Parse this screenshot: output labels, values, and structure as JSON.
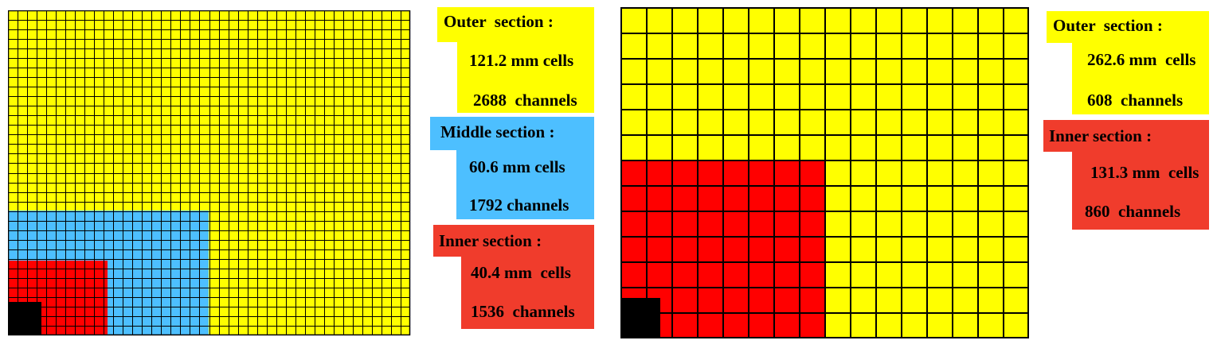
{
  "left_diagram": {
    "grid": {
      "cols": 42,
      "rows": 34
    },
    "sections": [
      {
        "key": "outer",
        "name": "Outer  section :",
        "cell_size": "121.2 mm cells",
        "channels": "2688  channels",
        "color": "#ffff00"
      },
      {
        "key": "middle",
        "name": "Middle section :",
        "cell_size": "60.6 mm cells",
        "channels": "1792 channels",
        "color": "#4dbfff"
      },
      {
        "key": "inner",
        "name": "Inner section :",
        "cell_size": "40.4 mm  cells",
        "channels": "1536  channels",
        "color": "#ff0000"
      }
    ],
    "beam_hole_color": "#000000"
  },
  "right_diagram": {
    "grid": {
      "cols": 16,
      "rows": 13
    },
    "sections": [
      {
        "key": "outer",
        "name": "Outer  section :",
        "cell_size": "262.6 mm  cells",
        "channels": "608  channels",
        "color": "#ffff00"
      },
      {
        "key": "inner",
        "name": "Inner section :",
        "cell_size": "131.3 mm  cells",
        "channels": "860  channels",
        "color": "#ff0000"
      }
    ],
    "beam_hole_color": "#000000"
  },
  "label_box_colors": {
    "yellow": "#ffff00",
    "blue": "#4dbfff",
    "red": "#f03c2c"
  }
}
